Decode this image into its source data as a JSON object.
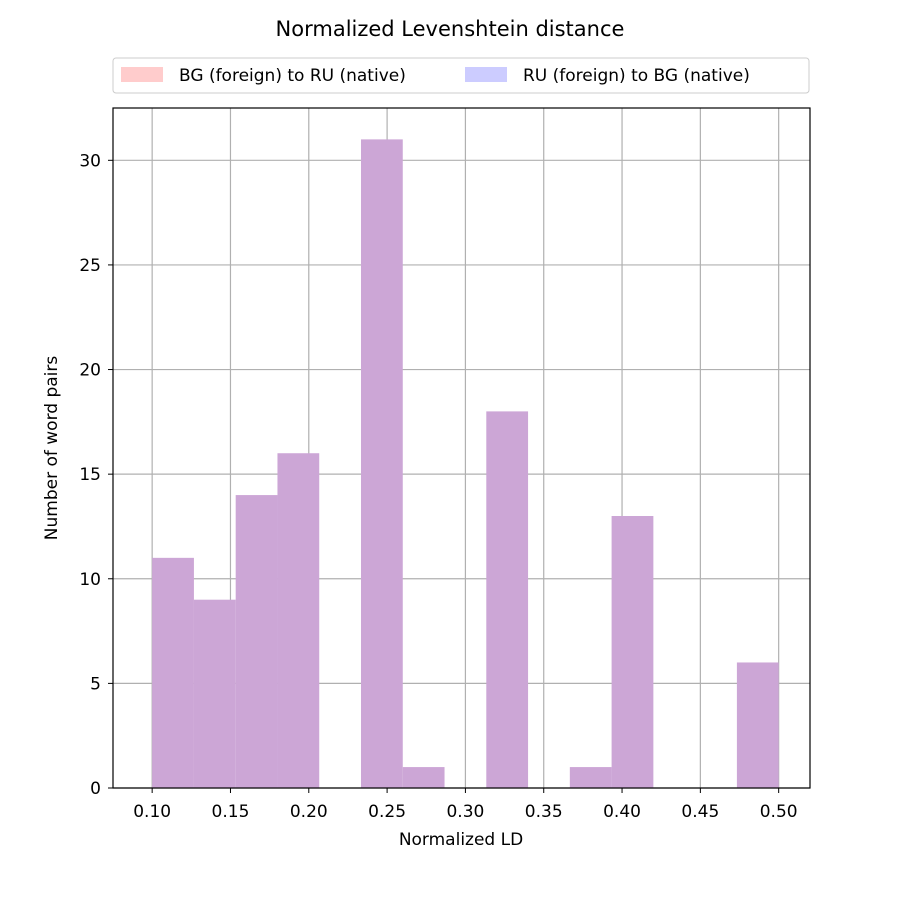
{
  "chart_data": {
    "type": "bar",
    "title": "Normalized Levenshtein distance",
    "xlabel": "Normalized LD",
    "ylabel": "Number of word pairs",
    "xlim": [
      0.075,
      0.52
    ],
    "ylim": [
      0,
      32.5
    ],
    "xticks": [
      "0.10",
      "0.15",
      "0.20",
      "0.25",
      "0.30",
      "0.35",
      "0.40",
      "0.45",
      "0.50"
    ],
    "yticks": [
      "0",
      "5",
      "10",
      "15",
      "20",
      "25",
      "30"
    ],
    "grid": true,
    "legend_position": "top-center",
    "bin_edges": [
      0.1,
      0.12667,
      0.15333,
      0.18,
      0.20667,
      0.23333,
      0.26,
      0.28667,
      0.31333,
      0.34,
      0.36667,
      0.39333,
      0.42,
      0.44667,
      0.47333,
      0.5
    ],
    "series": [
      {
        "name": "BG (foreign) to RU (native)",
        "color": "#ffcccc",
        "values": [
          11,
          9,
          14,
          16,
          0,
          31,
          1,
          0,
          18,
          0,
          1,
          13,
          0,
          0,
          6
        ]
      },
      {
        "name": "RU (foreign) to BG (native)",
        "color": "#ccccff",
        "values": [
          11,
          9,
          14,
          16,
          0,
          31,
          1,
          0,
          18,
          0,
          1,
          13,
          0,
          0,
          6
        ]
      }
    ],
    "overlap_color": "#cca6d6"
  }
}
